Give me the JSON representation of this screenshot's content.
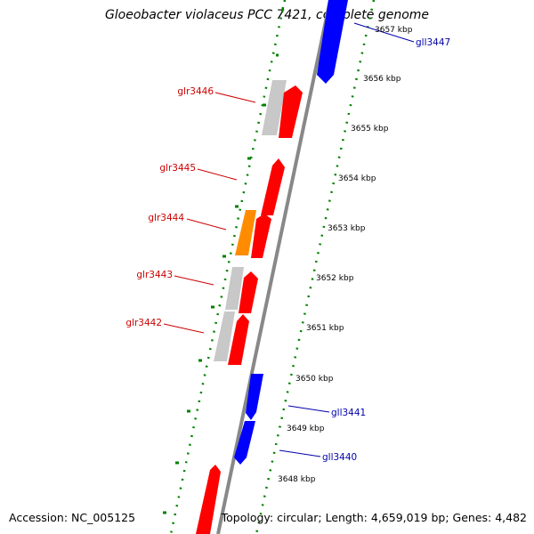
{
  "title": "Gloeobacter violaceus PCC 7421, complete genome",
  "footer": {
    "accession": "Accession: NC_005125",
    "summary": "Topology: circular; Length: 4,659,019 bp; Genes: 4,482"
  },
  "colors": {
    "forward_gene": "#ff0000",
    "reverse_gene": "#0000ff",
    "gray_feature": "#c8c8c8",
    "orange_feature": "#ff8c00",
    "backbone": "#888888",
    "tick_dots": "#008000",
    "forward_label": "#cc0000",
    "reverse_label": "#0000aa"
  },
  "scale_labels": [
    {
      "kbp": 3657,
      "text": "3657 kbp"
    },
    {
      "kbp": 3656,
      "text": "3656 kbp"
    },
    {
      "kbp": 3655,
      "text": "3655 kbp"
    },
    {
      "kbp": 3654,
      "text": "3654 kbp"
    },
    {
      "kbp": 3653,
      "text": "3653 kbp"
    },
    {
      "kbp": 3652,
      "text": "3652 kbp"
    },
    {
      "kbp": 3651,
      "text": "3651 kbp"
    },
    {
      "kbp": 3650,
      "text": "3650 kbp"
    },
    {
      "kbp": 3649,
      "text": "3649 kbp"
    },
    {
      "kbp": 3648,
      "text": "3648 kbp"
    }
  ],
  "gene_labels": [
    {
      "name": "gll3447",
      "strand": "reverse"
    },
    {
      "name": "glr3446",
      "strand": "forward"
    },
    {
      "name": "glr3445",
      "strand": "forward"
    },
    {
      "name": "glr3444",
      "strand": "forward"
    },
    {
      "name": "glr3443",
      "strand": "forward"
    },
    {
      "name": "glr3442",
      "strand": "forward"
    },
    {
      "name": "gll3441",
      "strand": "reverse"
    },
    {
      "name": "gll3440",
      "strand": "reverse"
    }
  ]
}
